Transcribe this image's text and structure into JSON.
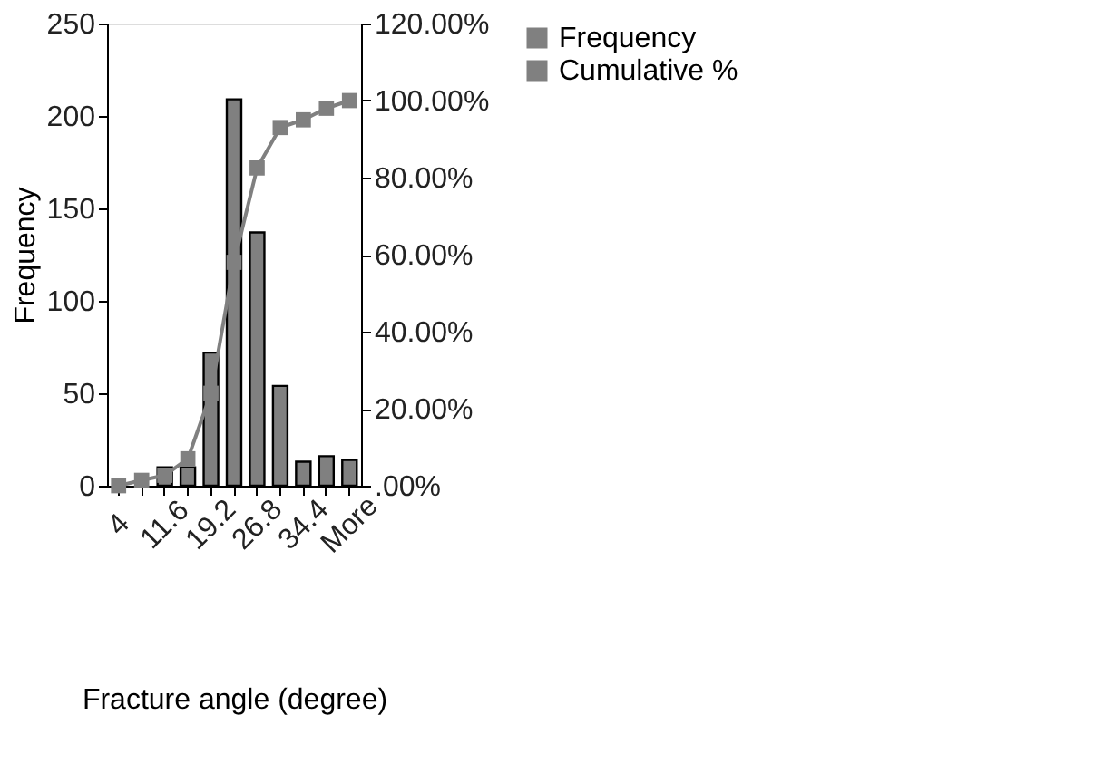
{
  "chart_data": {
    "type": "bar",
    "categories": [
      "4",
      null,
      "11.6",
      null,
      "19.2",
      null,
      "26.8",
      null,
      "34.4",
      null,
      "More"
    ],
    "series": [
      {
        "name": "Frequency",
        "color": "#808080",
        "values": [
          0,
          0,
          10,
          10,
          72,
          209,
          137,
          54,
          13,
          16,
          14
        ]
      },
      {
        "name": "Cumulative %",
        "type": "line",
        "axis": "y2",
        "color": "#808080",
        "values": [
          0,
          1.4,
          2.7,
          7,
          24,
          58,
          82.5,
          93,
          95,
          98,
          100
        ]
      }
    ],
    "xlabel": "Fracture angle (degree)",
    "ylabel": "Frequency",
    "ylim": [
      0,
      250
    ],
    "yticks": [
      0,
      50,
      100,
      150,
      200,
      250
    ],
    "y2lim": [
      0,
      120
    ],
    "y2ticks": [
      {
        "value": 0,
        "label": ".00%"
      },
      {
        "value": 20,
        "label": "20.00%"
      },
      {
        "value": 40,
        "label": "40.00%"
      },
      {
        "value": 60,
        "label": "60.00%"
      },
      {
        "value": 80,
        "label": "80.00%"
      },
      {
        "value": 100,
        "label": "100.00%"
      },
      {
        "value": 120,
        "label": "120.00%"
      }
    ],
    "legend": "right",
    "marker": "square",
    "grid": false
  }
}
